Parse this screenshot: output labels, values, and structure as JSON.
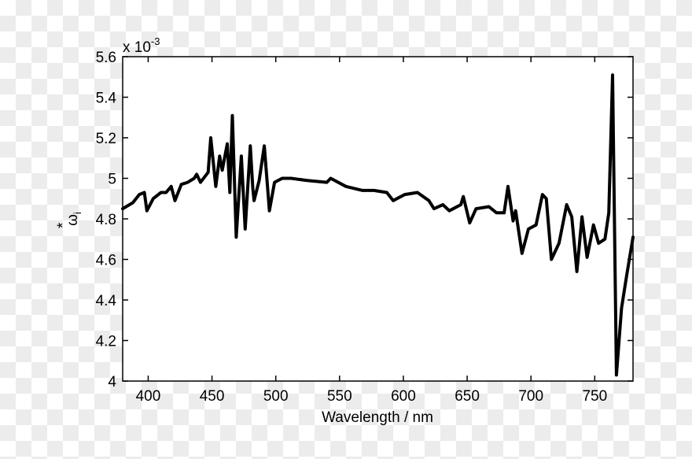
{
  "chart_data": {
    "type": "line",
    "title": "",
    "xlabel": "Wavelength / nm",
    "ylabel": "ω*_i",
    "ylabel_main": "ω",
    "ylabel_sup": "*",
    "ylabel_sub": "i",
    "y_multiplier": "x 10",
    "y_multiplier_exp": "-3",
    "xlim": [
      380,
      780
    ],
    "ylim": [
      4.0,
      5.6
    ],
    "xticks": [
      400,
      450,
      500,
      550,
      600,
      650,
      700,
      750
    ],
    "xtick_labels": [
      "400",
      "450",
      "500",
      "550",
      "600",
      "650",
      "700",
      "750"
    ],
    "yticks": [
      4.0,
      4.2,
      4.4,
      4.6,
      4.8,
      5.0,
      5.2,
      5.4,
      5.6
    ],
    "ytick_labels": [
      "4",
      "4.2",
      "4.4",
      "4.6",
      "4.8",
      "5",
      "5.2",
      "5.4",
      "5.6"
    ],
    "grid": false,
    "legend": null,
    "line_color": "#000000",
    "series": [
      {
        "name": "omega_i_star",
        "x": [
          380,
          388,
          393,
          397,
          399,
          404,
          410,
          414,
          418,
          421,
          426,
          431,
          436,
          438,
          441,
          447,
          449,
          453,
          456,
          458,
          462,
          464,
          466,
          469,
          473,
          476,
          480,
          482,
          483,
          487,
          491,
          495,
          499,
          505,
          512,
          524,
          540,
          543,
          555,
          568,
          577,
          587,
          592,
          601,
          611,
          620,
          624,
          631,
          636,
          645,
          647,
          652,
          657,
          667,
          673,
          679,
          682,
          686,
          688,
          693,
          698,
          704,
          709,
          712,
          716,
          722,
          728,
          732,
          736,
          740,
          744,
          749,
          753,
          758,
          761,
          764,
          767,
          771,
          775,
          780
        ],
        "values": [
          4.85,
          4.88,
          4.92,
          4.93,
          4.84,
          4.9,
          4.93,
          4.93,
          4.96,
          4.89,
          4.97,
          4.98,
          5.0,
          5.02,
          4.98,
          5.03,
          5.2,
          4.96,
          5.11,
          5.04,
          5.17,
          4.93,
          5.31,
          4.71,
          5.11,
          4.75,
          5.16,
          4.95,
          4.89,
          4.99,
          5.16,
          4.84,
          4.98,
          5.0,
          5.0,
          4.99,
          4.98,
          5.0,
          4.96,
          4.94,
          4.94,
          4.93,
          4.89,
          4.92,
          4.93,
          4.89,
          4.85,
          4.87,
          4.84,
          4.87,
          4.91,
          4.78,
          4.85,
          4.86,
          4.83,
          4.83,
          4.96,
          4.79,
          4.84,
          4.63,
          4.75,
          4.77,
          4.92,
          4.9,
          4.6,
          4.68,
          4.87,
          4.81,
          4.54,
          4.81,
          4.61,
          4.77,
          4.68,
          4.7,
          4.83,
          5.51,
          4.03,
          4.36,
          4.52,
          4.71
        ]
      }
    ]
  }
}
